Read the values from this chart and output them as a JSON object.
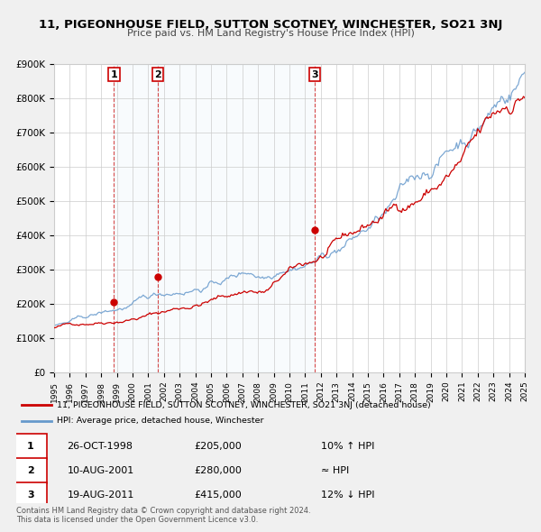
{
  "title": "11, PIGEONHOUSE FIELD, SUTTON SCOTNEY, WINCHESTER, SO21 3NJ",
  "subtitle": "Price paid vs. HM Land Registry's House Price Index (HPI)",
  "red_label": "11, PIGEONHOUSE FIELD, SUTTON SCOTNEY, WINCHESTER, SO21 3NJ (detached house)",
  "blue_label": "HPI: Average price, detached house, Winchester",
  "background_color": "#f0f0f0",
  "plot_background": "#ffffff",
  "red_color": "#cc0000",
  "blue_color": "#6699cc",
  "transactions": [
    {
      "num": 1,
      "date": "26-OCT-1998",
      "price": 205000,
      "relation": "10% ↑ HPI",
      "year": 1998.82
    },
    {
      "num": 2,
      "date": "10-AUG-2001",
      "price": 280000,
      "relation": "≈ HPI",
      "year": 2001.61
    },
    {
      "num": 3,
      "date": "19-AUG-2011",
      "price": 415000,
      "relation": "12% ↓ HPI",
      "year": 2011.63
    }
  ],
  "footer": [
    "Contains HM Land Registry data © Crown copyright and database right 2024.",
    "This data is licensed under the Open Government Licence v3.0."
  ],
  "ylim": [
    0,
    900000
  ],
  "yticks": [
    0,
    100000,
    200000,
    300000,
    400000,
    500000,
    600000,
    700000,
    800000,
    900000
  ],
  "xlim": [
    1995,
    2025
  ],
  "xticks": [
    1995,
    1996,
    1997,
    1998,
    1999,
    2000,
    2001,
    2002,
    2003,
    2004,
    2005,
    2006,
    2007,
    2008,
    2009,
    2010,
    2011,
    2012,
    2013,
    2014,
    2015,
    2016,
    2017,
    2018,
    2019,
    2020,
    2021,
    2022,
    2023,
    2024,
    2025
  ]
}
